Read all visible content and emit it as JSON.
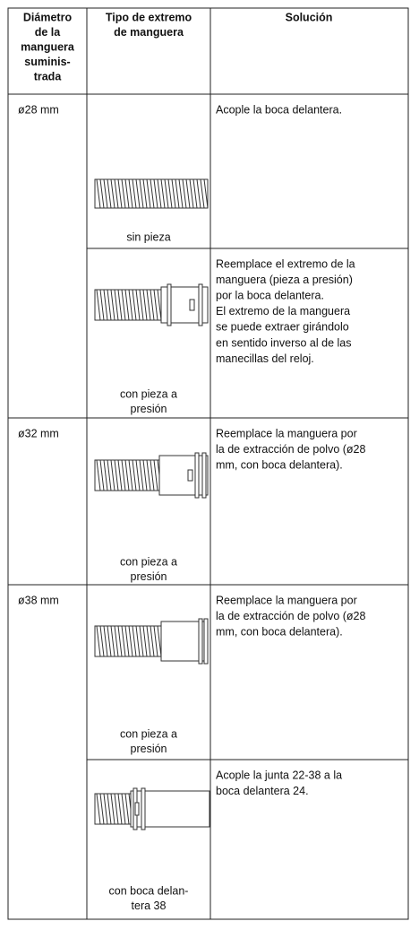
{
  "table": {
    "header": [
      [
        "Diámetro",
        "de la",
        "manguera",
        "suminis-",
        "trada"
      ],
      [
        "Tipo de extremo",
        "de manguera"
      ],
      [
        "Solución"
      ]
    ],
    "rows": [
      {
        "diameter": "ø28 mm",
        "caption": [
          "sin pieza"
        ],
        "solution": [
          "Acople la boca delantera."
        ]
      },
      {
        "caption": [
          "con pieza a",
          "presión"
        ],
        "solution": [
          "Reemplace el extremo de la",
          "manguera (pieza a presión)",
          "por la boca delantera.",
          "El extremo de la manguera",
          "se puede extraer girándolo",
          "en sentido inverso al de las",
          "manecillas del reloj."
        ]
      },
      {
        "diameter": "ø32 mm",
        "caption": [
          "con pieza a",
          "presión"
        ],
        "solution": [
          "Reemplace la manguera por",
          "la de extracción de polvo (ø28",
          "mm, con boca delantera)."
        ]
      },
      {
        "diameter": "ø38 mm",
        "caption": [
          "con pieza a",
          "presión"
        ],
        "solution": [
          "Reemplace la manguera por",
          "la de extracción de polvo (ø28",
          "mm, con boca delantera)."
        ]
      },
      {
        "caption": [
          "con boca delan-",
          "tera 38"
        ],
        "solution": [
          "Acople la junta 22-38 a la",
          "boca delantera 24."
        ]
      }
    ]
  }
}
